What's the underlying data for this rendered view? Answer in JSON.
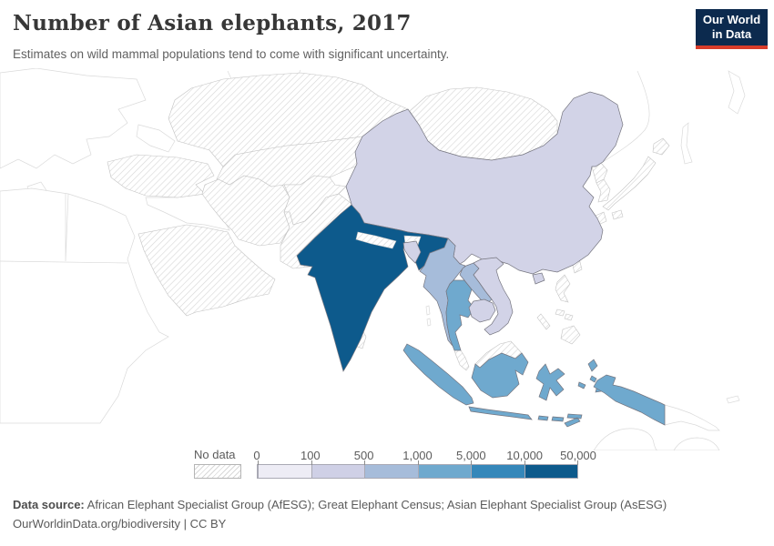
{
  "header": {
    "title": "Number of Asian elephants, 2017",
    "subtitle": "Estimates on wild mammal populations tend to come with significant uncertainty."
  },
  "logo": {
    "line1": "Our World",
    "line2": "in Data",
    "bg": "#0c2a4e",
    "accent": "#d83c2a"
  },
  "chart_data": {
    "type": "choropleth_map",
    "title": "Number of Asian elephants, 2017",
    "year": "2017",
    "region_shown": "Asia",
    "legend": {
      "no_data_label": "No data",
      "tick_labels": [
        "0",
        "100",
        "500",
        "1,000",
        "5,000",
        "10,000",
        "50,000"
      ],
      "bins": [
        {
          "range": "0–100",
          "color": "#edecf5"
        },
        {
          "range": "100–500",
          "color": "#cfd0e6"
        },
        {
          "range": "500–1,000",
          "color": "#a6bcda"
        },
        {
          "range": "1,000–5,000",
          "color": "#6fa9ce"
        },
        {
          "range": "5,000–10,000",
          "color": "#3587ba"
        },
        {
          "range": "10,000–50,000",
          "color": "#0d5a8c"
        }
      ]
    },
    "countries": [
      {
        "id": "india",
        "name": "India",
        "bin": "10,000–50,000",
        "color": "#0d5a8c"
      },
      {
        "id": "thailand",
        "name": "Thailand",
        "bin": "1,000–5,000",
        "color": "#6fa9ce"
      },
      {
        "id": "indonesia",
        "name": "Indonesia",
        "bin": "1,000–5,000",
        "color": "#6fa9ce"
      },
      {
        "id": "myanmar",
        "name": "Myanmar",
        "bin": "500–1,000",
        "color": "#a6bcda"
      },
      {
        "id": "laos",
        "name": "Laos",
        "bin": "500–1,000",
        "color": "#a6bcda"
      },
      {
        "id": "china",
        "name": "China",
        "bin": "100–500",
        "color": "#d2d3e7"
      },
      {
        "id": "bangladesh",
        "name": "Bangladesh",
        "bin": "100–500",
        "color": "#d2d3e7"
      },
      {
        "id": "cambodia",
        "name": "Cambodia",
        "bin": "100–500",
        "color": "#d2d3e7"
      },
      {
        "id": "vietnam",
        "name": "Vietnam",
        "bin": "100–500",
        "color": "#d2d3e7"
      },
      {
        "id": "nepal",
        "name": "Nepal",
        "no_data": true
      },
      {
        "id": "bhutan",
        "name": "Bhutan",
        "no_data": true
      },
      {
        "id": "sri-lanka",
        "name": "Sri Lanka",
        "no_data": true
      },
      {
        "id": "malaysia",
        "name": "Malaysia",
        "no_data": true
      },
      {
        "id": "philippines",
        "name": "Philippines",
        "no_data": true
      },
      {
        "id": "taiwan",
        "name": "Taiwan",
        "no_data": true
      },
      {
        "id": "japan",
        "name": "Japan",
        "no_data": true
      },
      {
        "id": "north-korea",
        "name": "North Korea",
        "no_data": true
      },
      {
        "id": "south-korea",
        "name": "South Korea",
        "no_data": true
      },
      {
        "id": "mongolia",
        "name": "Mongolia",
        "no_data": true
      },
      {
        "id": "kazakhstan",
        "name": "Kazakhstan",
        "no_data": true
      },
      {
        "id": "central-asia",
        "name": "Central Asian states",
        "no_data": true
      },
      {
        "id": "afghanistan",
        "name": "Afghanistan",
        "no_data": true
      },
      {
        "id": "pakistan",
        "name": "Pakistan",
        "no_data": true
      },
      {
        "id": "iran",
        "name": "Iran",
        "no_data": true
      },
      {
        "id": "turkey",
        "name": "Turkey",
        "no_data": true
      },
      {
        "id": "saudi-arabia",
        "name": "Arabian Peninsula",
        "no_data": true
      }
    ]
  },
  "footer": {
    "source_label": "Data source:",
    "source_text": " African Elephant Specialist Group (AfESG); Great Elephant Census; Asian Elephant Specialist Group (AsESG)",
    "link_text": "OurWorldinData.org/biodiversity",
    "separator": " | ",
    "license_text": "CC BY"
  }
}
